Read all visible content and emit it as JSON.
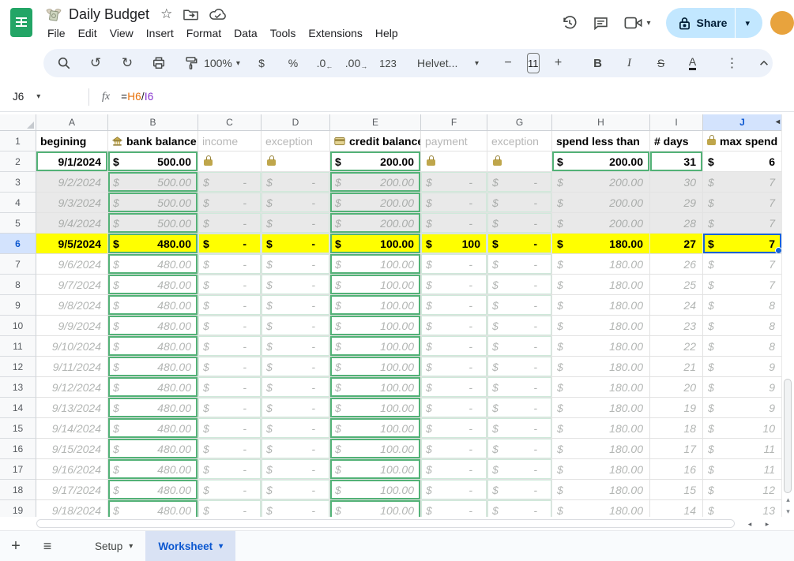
{
  "titlebar": {
    "doc_title": "Daily Budget",
    "menu_items": [
      "File",
      "Edit",
      "View",
      "Insert",
      "Format",
      "Data",
      "Tools",
      "Extensions",
      "Help"
    ],
    "share_label": "Share"
  },
  "toolbar": {
    "zoom_value": "100%",
    "currency_label": "$",
    "percent_label": "%",
    "decrease_decimal_label": ".0",
    "increase_decimal_label": ".00",
    "more_formats_label": "123",
    "font_name": "Helvet...",
    "font_size": "11",
    "bold_label": "B",
    "italic_label": "I",
    "strikethrough_label": "S",
    "text_color_label": "A",
    "more_label": "⋮"
  },
  "formula_bar": {
    "cell_ref": "J6",
    "fx_label": "fx",
    "formula_tokens": [
      {
        "text": "=",
        "color": "#202124"
      },
      {
        "text": "H6",
        "color": "#e8710a"
      },
      {
        "text": "/",
        "color": "#202124"
      },
      {
        "text": "I6",
        "color": "#8430ce"
      }
    ]
  },
  "grid": {
    "column_headers": [
      "A",
      "B",
      "C",
      "D",
      "E",
      "F",
      "G",
      "H",
      "I",
      "J"
    ],
    "selected_column": "J",
    "selected_row": 6,
    "selected_cell": "J6",
    "header_cells": [
      {
        "col": "A",
        "label": "begining",
        "style": "bold"
      },
      {
        "col": "B",
        "label": "bank balance",
        "icon": "bank-icon",
        "style": "bold"
      },
      {
        "col": "C",
        "label": "income",
        "style": "dim"
      },
      {
        "col": "D",
        "label": "exception",
        "style": "dim"
      },
      {
        "col": "E",
        "label": "credit balance",
        "icon": "credit-card-icon",
        "style": "bold"
      },
      {
        "col": "F",
        "label": "payment",
        "style": "dim"
      },
      {
        "col": "G",
        "label": "exception",
        "style": "dim"
      },
      {
        "col": "H",
        "label": "spend less than",
        "style": "bold"
      },
      {
        "col": "I",
        "label": "# days",
        "style": "bold"
      },
      {
        "col": "J",
        "label": "max spend",
        "icon": "lock-icon",
        "style": "bold"
      }
    ],
    "rows": [
      {
        "n": 2,
        "variant": "setup",
        "date": "9/1/2024",
        "bank": "500.00",
        "income": "lock",
        "exception1": "lock",
        "credit": "200.00",
        "payment": "lock",
        "exception2": "lock",
        "spend": "200.00",
        "days": "31",
        "max": "6"
      },
      {
        "n": 3,
        "variant": "past",
        "date": "9/2/2024",
        "bank": "500.00",
        "income": "-",
        "exception1": "-",
        "credit": "200.00",
        "payment": "-",
        "exception2": "-",
        "spend": "200.00",
        "days": "30",
        "max": "7"
      },
      {
        "n": 4,
        "variant": "past",
        "date": "9/3/2024",
        "bank": "500.00",
        "income": "-",
        "exception1": "-",
        "credit": "200.00",
        "payment": "-",
        "exception2": "-",
        "spend": "200.00",
        "days": "29",
        "max": "7"
      },
      {
        "n": 5,
        "variant": "past",
        "date": "9/4/2024",
        "bank": "500.00",
        "income": "-",
        "exception1": "-",
        "credit": "200.00",
        "payment": "-",
        "exception2": "-",
        "spend": "200.00",
        "days": "28",
        "max": "7"
      },
      {
        "n": 6,
        "variant": "today",
        "date": "9/5/2024",
        "bank": "480.00",
        "income": "-",
        "exception1": "-",
        "credit": "100.00",
        "payment": "100",
        "exception2": "-",
        "spend": "180.00",
        "days": "27",
        "max": "7"
      },
      {
        "n": 7,
        "variant": "future",
        "date": "9/6/2024",
        "bank": "480.00",
        "income": "-",
        "exception1": "-",
        "credit": "100.00",
        "payment": "-",
        "exception2": "-",
        "spend": "180.00",
        "days": "26",
        "max": "7"
      },
      {
        "n": 8,
        "variant": "future",
        "date": "9/7/2024",
        "bank": "480.00",
        "income": "-",
        "exception1": "-",
        "credit": "100.00",
        "payment": "-",
        "exception2": "-",
        "spend": "180.00",
        "days": "25",
        "max": "7"
      },
      {
        "n": 9,
        "variant": "future",
        "date": "9/8/2024",
        "bank": "480.00",
        "income": "-",
        "exception1": "-",
        "credit": "100.00",
        "payment": "-",
        "exception2": "-",
        "spend": "180.00",
        "days": "24",
        "max": "8"
      },
      {
        "n": 10,
        "variant": "future",
        "date": "9/9/2024",
        "bank": "480.00",
        "income": "-",
        "exception1": "-",
        "credit": "100.00",
        "payment": "-",
        "exception2": "-",
        "spend": "180.00",
        "days": "23",
        "max": "8"
      },
      {
        "n": 11,
        "variant": "future",
        "date": "9/10/2024",
        "bank": "480.00",
        "income": "-",
        "exception1": "-",
        "credit": "100.00",
        "payment": "-",
        "exception2": "-",
        "spend": "180.00",
        "days": "22",
        "max": "8"
      },
      {
        "n": 12,
        "variant": "future",
        "date": "9/11/2024",
        "bank": "480.00",
        "income": "-",
        "exception1": "-",
        "credit": "100.00",
        "payment": "-",
        "exception2": "-",
        "spend": "180.00",
        "days": "21",
        "max": "9"
      },
      {
        "n": 13,
        "variant": "future",
        "date": "9/12/2024",
        "bank": "480.00",
        "income": "-",
        "exception1": "-",
        "credit": "100.00",
        "payment": "-",
        "exception2": "-",
        "spend": "180.00",
        "days": "20",
        "max": "9"
      },
      {
        "n": 14,
        "variant": "future",
        "date": "9/13/2024",
        "bank": "480.00",
        "income": "-",
        "exception1": "-",
        "credit": "100.00",
        "payment": "-",
        "exception2": "-",
        "spend": "180.00",
        "days": "19",
        "max": "9"
      },
      {
        "n": 15,
        "variant": "future",
        "date": "9/14/2024",
        "bank": "480.00",
        "income": "-",
        "exception1": "-",
        "credit": "100.00",
        "payment": "-",
        "exception2": "-",
        "spend": "180.00",
        "days": "18",
        "max": "10"
      },
      {
        "n": 16,
        "variant": "future",
        "date": "9/15/2024",
        "bank": "480.00",
        "income": "-",
        "exception1": "-",
        "credit": "100.00",
        "payment": "-",
        "exception2": "-",
        "spend": "180.00",
        "days": "17",
        "max": "11"
      },
      {
        "n": 17,
        "variant": "future",
        "date": "9/16/2024",
        "bank": "480.00",
        "income": "-",
        "exception1": "-",
        "credit": "100.00",
        "payment": "-",
        "exception2": "-",
        "spend": "180.00",
        "days": "16",
        "max": "11"
      },
      {
        "n": 18,
        "variant": "future",
        "date": "9/17/2024",
        "bank": "480.00",
        "income": "-",
        "exception1": "-",
        "credit": "100.00",
        "payment": "-",
        "exception2": "-",
        "spend": "180.00",
        "days": "15",
        "max": "12"
      },
      {
        "n": 19,
        "variant": "future",
        "date": "9/18/2024",
        "bank": "480.00",
        "income": "-",
        "exception1": "-",
        "credit": "100.00",
        "payment": "-",
        "exception2": "-",
        "spend": "180.00",
        "days": "14",
        "max": "13"
      }
    ],
    "currency_symbol": "$"
  },
  "sheet_bar": {
    "tabs": [
      {
        "label": "Setup",
        "active": false
      },
      {
        "label": "Worksheet",
        "active": true
      }
    ]
  },
  "colors": {
    "selection_blue": "#1663d8",
    "selected_header_bg": "#d3e3fd",
    "active_row_bg": "#ffff00",
    "past_row_bg": "#e9e9e9",
    "strong_green_border": "#53b277",
    "faint_green_border": "#cfe9da",
    "share_button_bg": "#c2e7ff",
    "sheets_green": "#23a566"
  }
}
